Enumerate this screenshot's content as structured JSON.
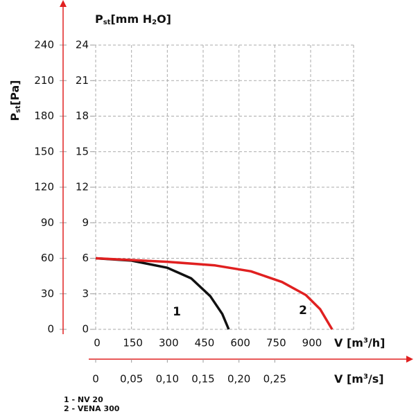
{
  "chart_data": {
    "type": "line",
    "ylabel": [
      "P",
      "st",
      "[Pa]"
    ],
    "y2label": [
      "P",
      "st",
      "[mm H",
      "2",
      "O]"
    ],
    "xlabel": [
      "V [m",
      "3",
      "/h]"
    ],
    "x2label": [
      "V [m",
      "3",
      "/s]"
    ],
    "xlim": [
      0,
      1080
    ],
    "xticks": [
      0,
      150,
      300,
      450,
      600,
      750,
      900
    ],
    "x2lim": [
      0,
      0.36
    ],
    "x2ticks": [
      0,
      {
        "value": 0.05,
        "label": "0,05"
      },
      {
        "value": 0.1,
        "label": "0,10"
      },
      {
        "value": 0.15,
        "label": "0,15"
      },
      {
        "value": 0.2,
        "label": "0,20"
      },
      {
        "value": 0.25,
        "label": "0,25"
      }
    ],
    "ylim": [
      0,
      240
    ],
    "yticks": [
      0,
      30,
      60,
      90,
      120,
      150,
      180,
      210,
      240
    ],
    "y2lim": [
      0,
      24
    ],
    "y2ticks": [
      0,
      3,
      6,
      9,
      12,
      15,
      18,
      21,
      24
    ],
    "grid": true,
    "axis_color": "#e02020",
    "series": [
      {
        "name": "1 - NV 20",
        "label": "1",
        "color": "#111111",
        "x": [
          0,
          150,
          300,
          400,
          480,
          530,
          557
        ],
        "values": [
          60,
          58,
          52,
          43,
          28,
          13,
          0
        ]
      },
      {
        "name": "2 - VENA 300",
        "label": "2",
        "color": "#e02020",
        "x": [
          0,
          300,
          500,
          650,
          780,
          880,
          940,
          990
        ],
        "values": [
          60,
          57,
          54,
          49,
          40,
          29,
          17,
          0
        ]
      }
    ]
  }
}
